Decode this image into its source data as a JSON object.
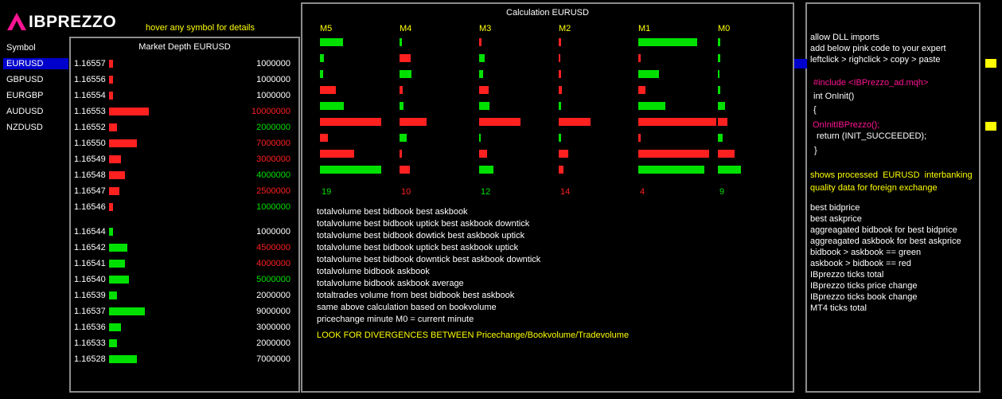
{
  "colors": {
    "green": "#00e000",
    "red": "#ff2020",
    "yellow": "#ffff00",
    "blue": "#0000cc",
    "pink": "#ff1493"
  },
  "logo": {
    "text": "IBPREZZO"
  },
  "hint": "hover any symbol for details",
  "symbols": {
    "header": "Symbol",
    "items": [
      "EURUSD",
      "GBPUSD",
      "EURGBP",
      "AUDUSD",
      "NZDUSD"
    ],
    "active_index": 0
  },
  "depth": {
    "title": "Market Depth EURUSD",
    "asks": [
      {
        "price": "1.16557",
        "bar": "red",
        "vol": "1000000",
        "vol_color": "white"
      },
      {
        "price": "1.16556",
        "bar": "red",
        "vol": "1000000",
        "vol_color": "white"
      },
      {
        "price": "1.16554",
        "bar": "red",
        "vol": "1000000",
        "vol_color": "white"
      },
      {
        "price": "1.16553",
        "bar": "red",
        "vol": "10000000",
        "vol_color": "red"
      },
      {
        "price": "1.16552",
        "bar": "red",
        "vol": "2000000",
        "vol_color": "green"
      },
      {
        "price": "1.16550",
        "bar": "red",
        "vol": "7000000",
        "vol_color": "red"
      },
      {
        "price": "1.16549",
        "bar": "red",
        "vol": "3000000",
        "vol_color": "red"
      },
      {
        "price": "1.16548",
        "bar": "red",
        "vol": "4000000",
        "vol_color": "green"
      },
      {
        "price": "1.16547",
        "bar": "red",
        "vol": "2500000",
        "vol_color": "red"
      },
      {
        "price": "1.16546",
        "bar": "red",
        "vol": "1000000",
        "vol_color": "green"
      }
    ],
    "bids": [
      {
        "price": "1.16544",
        "bar": "green",
        "vol": "1000000",
        "vol_color": "white"
      },
      {
        "price": "1.16542",
        "bar": "green",
        "vol": "4500000",
        "vol_color": "red"
      },
      {
        "price": "1.16541",
        "bar": "green",
        "vol": "4000000",
        "vol_color": "red"
      },
      {
        "price": "1.16540",
        "bar": "green",
        "vol": "5000000",
        "vol_color": "green"
      },
      {
        "price": "1.16539",
        "bar": "green",
        "vol": "2000000",
        "vol_color": "white"
      },
      {
        "price": "1.16537",
        "bar": "green",
        "vol": "9000000",
        "vol_color": "white"
      },
      {
        "price": "1.16536",
        "bar": "green",
        "vol": "3000000",
        "vol_color": "white"
      },
      {
        "price": "1.16533",
        "bar": "green",
        "vol": "2000000",
        "vol_color": "white"
      },
      {
        "price": "1.16528",
        "bar": "green",
        "vol": "7000000",
        "vol_color": "white"
      }
    ]
  },
  "calc": {
    "title": "Calculation EURUSD",
    "columns": [
      {
        "label": "M5",
        "total": "19",
        "total_color": "green",
        "bars": [
          {
            "c": "green",
            "v": 29
          },
          {
            "c": "green",
            "v": 5
          },
          {
            "c": "green",
            "v": 4
          },
          {
            "c": "red",
            "v": 20
          },
          {
            "c": "green",
            "v": 30
          },
          {
            "c": "red",
            "v": 77
          },
          {
            "c": "red",
            "v": 10
          },
          {
            "c": "red",
            "v": 43
          },
          {
            "c": "green",
            "v": 77
          }
        ]
      },
      {
        "label": "M4",
        "total": "10",
        "total_color": "red",
        "bars": [
          {
            "c": "green",
            "v": 3
          },
          {
            "c": "red",
            "v": 14
          },
          {
            "c": "green",
            "v": 15
          },
          {
            "c": "red",
            "v": 4
          },
          {
            "c": "green",
            "v": 5
          },
          {
            "c": "red",
            "v": 34
          },
          {
            "c": "green",
            "v": 9
          },
          {
            "c": "red",
            "v": 3
          },
          {
            "c": "red",
            "v": 13
          }
        ]
      },
      {
        "label": "M3",
        "total": "12",
        "total_color": "green",
        "bars": [
          {
            "c": "red",
            "v": 3
          },
          {
            "c": "green",
            "v": 7
          },
          {
            "c": "green",
            "v": 5
          },
          {
            "c": "red",
            "v": 12
          },
          {
            "c": "green",
            "v": 13
          },
          {
            "c": "red",
            "v": 52
          },
          {
            "c": "green",
            "v": 2
          },
          {
            "c": "red",
            "v": 10
          },
          {
            "c": "green",
            "v": 18
          }
        ]
      },
      {
        "label": "M2",
        "total": "14",
        "total_color": "red",
        "bars": [
          {
            "c": "red",
            "v": 3
          },
          {
            "c": "red",
            "v": 2
          },
          {
            "c": "red",
            "v": 3
          },
          {
            "c": "red",
            "v": 4
          },
          {
            "c": "green",
            "v": 3
          },
          {
            "c": "red",
            "v": 40
          },
          {
            "c": "green",
            "v": 3
          },
          {
            "c": "red",
            "v": 12
          },
          {
            "c": "red",
            "v": 6
          }
        ]
      },
      {
        "label": "M1",
        "total": "4",
        "total_color": "red",
        "bars": [
          {
            "c": "green",
            "v": 74
          },
          {
            "c": "red",
            "v": 3
          },
          {
            "c": "green",
            "v": 26
          },
          {
            "c": "red",
            "v": 9
          },
          {
            "c": "green",
            "v": 34
          },
          {
            "c": "red",
            "v": 98
          },
          {
            "c": "red",
            "v": 3
          },
          {
            "c": "red",
            "v": 89
          },
          {
            "c": "green",
            "v": 83
          }
        ]
      },
      {
        "label": "M0",
        "total": "9",
        "total_color": "green",
        "bars": [
          {
            "c": "green",
            "v": 3
          },
          {
            "c": "green",
            "v": 3
          },
          {
            "c": "green",
            "v": 2
          },
          {
            "c": "green",
            "v": 3
          },
          {
            "c": "green",
            "v": 9
          },
          {
            "c": "red",
            "v": 12
          },
          {
            "c": "green",
            "v": 6
          },
          {
            "c": "red",
            "v": 21
          },
          {
            "c": "green",
            "v": 29
          }
        ]
      }
    ],
    "descriptions": [
      "totalvolume best bidbook best askbook",
      "totalvolume best bidbook uptick best askbook downtick",
      "totalvolume best bidbook dowtick best askbook uptick",
      "totalvolume best bidbook uptick best askbook uptick",
      "totalvolume best bidbook downtick best askbook downtick",
      "totalvolume bidbook askbook",
      "totalvolume bidbook askbook average",
      "totaltrades volume from best bidbook best askbook",
      "same above calculation based on bookvolume",
      "pricechange minute M0 = current minute"
    ],
    "warning": "LOOK FOR DIVERGENCES BETWEEN Pricechange/Bookvolume/Tradevolume"
  },
  "info": {
    "instructions": [
      "allow DLL imports",
      "add below pink code to your expert",
      "leftclick > righclick > copy > paste"
    ],
    "code": [
      {
        "text": "#include <IBPrezzo_ad.mqh>",
        "color": "pink"
      },
      {
        "text": "int OnInit()",
        "color": "white"
      },
      {
        "text": "{",
        "color": "white"
      },
      {
        "text": "OnInitIBPrezzo();",
        "color": "pink"
      },
      {
        "text": "return (INIT_SUCCEEDED);",
        "color": "white"
      },
      {
        "text": "}",
        "color": "white"
      }
    ],
    "tagline": [
      "shows processed  EURUSD  interbanking",
      "quality data for foreign exchange"
    ],
    "legend": [
      "best bidprice",
      "best askprice",
      "aggreagated bidbook for best bidprice",
      "aggreagated askbook for best askprice",
      "bidbook > askbook == green",
      "askbook > bidbook == red",
      "IBprezzo ticks total",
      "IBprezzo ticks price change",
      "IBprezzo ticks book change",
      "MT4 ticks total"
    ]
  }
}
